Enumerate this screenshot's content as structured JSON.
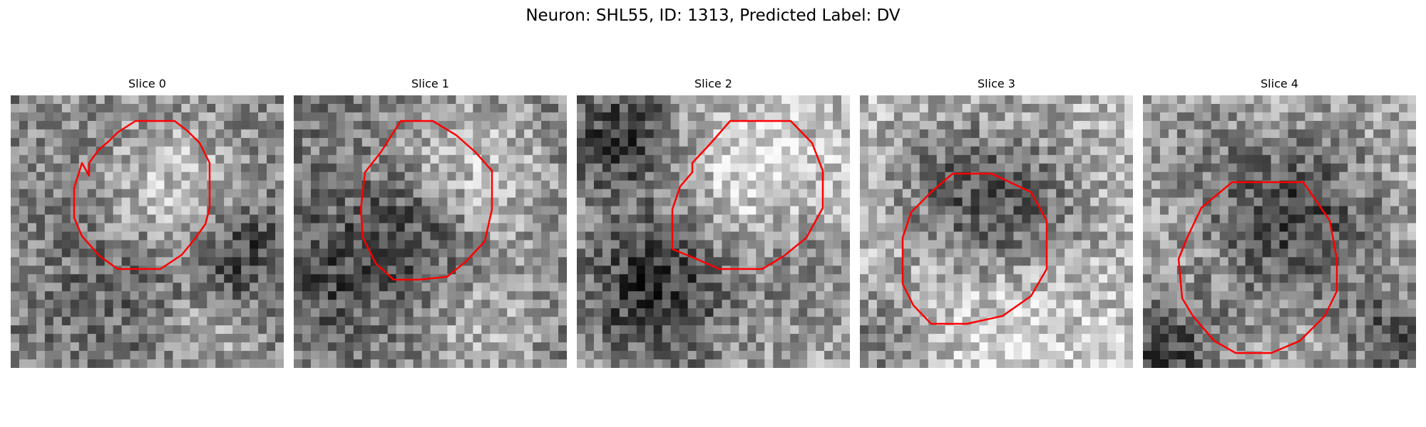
{
  "figure": {
    "title": "Neuron: SHL55, ID: 1313, Predicted Label: DV"
  },
  "panels": [
    {
      "title": "Slice 0",
      "contour_color": "#ff0000",
      "image": "grayscale-noise-slice-0"
    },
    {
      "title": "Slice 1",
      "contour_color": "#ff0000",
      "image": "grayscale-noise-slice-1"
    },
    {
      "title": "Slice 2",
      "contour_color": "#ff0000",
      "image": "grayscale-noise-slice-2"
    },
    {
      "title": "Slice 3",
      "contour_color": "#ff0000",
      "image": "grayscale-noise-slice-3"
    },
    {
      "title": "Slice 4",
      "contour_color": "#ff0000",
      "image": "grayscale-noise-slice-4"
    }
  ]
}
